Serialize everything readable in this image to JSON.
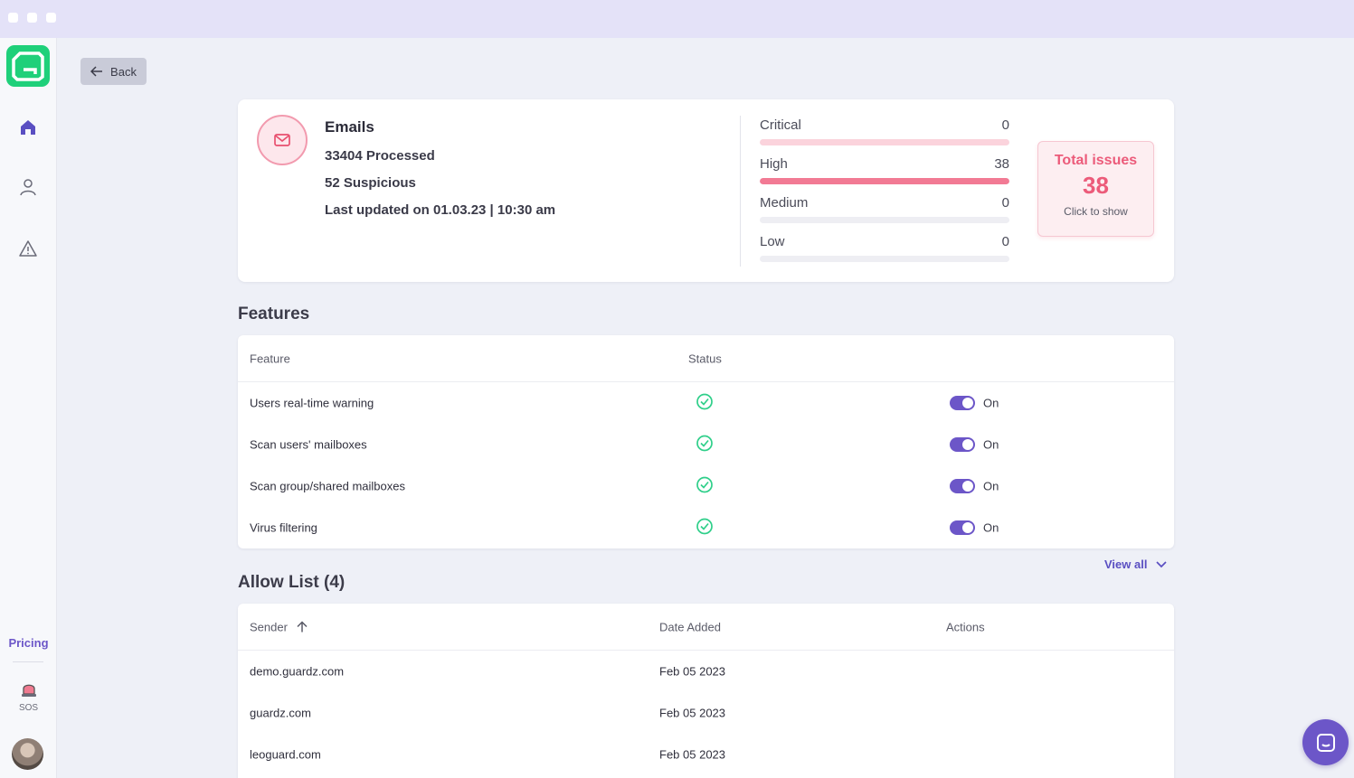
{
  "nav": {
    "pricing_label": "Pricing",
    "sos_label": "SOS",
    "icons": [
      "home-icon",
      "user-icon",
      "warning-icon"
    ]
  },
  "back_label": "Back",
  "summary": {
    "title": "Emails",
    "processed": "33404 Processed",
    "suspicious": "52 Suspicious",
    "last_updated": "Last updated on 01.03.23 | 10:30 am",
    "severity": [
      {
        "label": "Critical",
        "value": "0",
        "fraction": 1.0,
        "color": "#fbd3dc"
      },
      {
        "label": "High",
        "value": "38",
        "fraction": 1.0,
        "color": "#f27a94"
      },
      {
        "label": "Medium",
        "value": "0",
        "fraction": 0,
        "color": "#eeeef3"
      },
      {
        "label": "Low",
        "value": "0",
        "fraction": 0,
        "color": "#eeeef3"
      }
    ],
    "total": {
      "title": "Total issues",
      "count": "38",
      "hint": "Click to show"
    }
  },
  "features": {
    "title": "Features",
    "col_feature": "Feature",
    "col_status": "Status",
    "rows": [
      {
        "name": "Users real-time warning",
        "toggle": "On"
      },
      {
        "name": "Scan users' mailboxes",
        "toggle": "On"
      },
      {
        "name": "Scan group/shared mailboxes",
        "toggle": "On"
      },
      {
        "name": "Virus filtering",
        "toggle": "On"
      }
    ],
    "view_all": "View all"
  },
  "allow_list": {
    "title": "Allow List (4)",
    "col_sender": "Sender",
    "col_date": "Date Added",
    "col_actions": "Actions",
    "rows": [
      {
        "sender": "demo.guardz.com",
        "date": "Feb 05 2023"
      },
      {
        "sender": "guardz.com",
        "date": "Feb 05 2023"
      },
      {
        "sender": "leoguard.com",
        "date": "Feb 05 2023"
      }
    ]
  },
  "colors": {
    "accent": "#6c56c8",
    "brand": "#1fd07a",
    "danger": "#ec5b7a",
    "success": "#2fcf8a"
  }
}
